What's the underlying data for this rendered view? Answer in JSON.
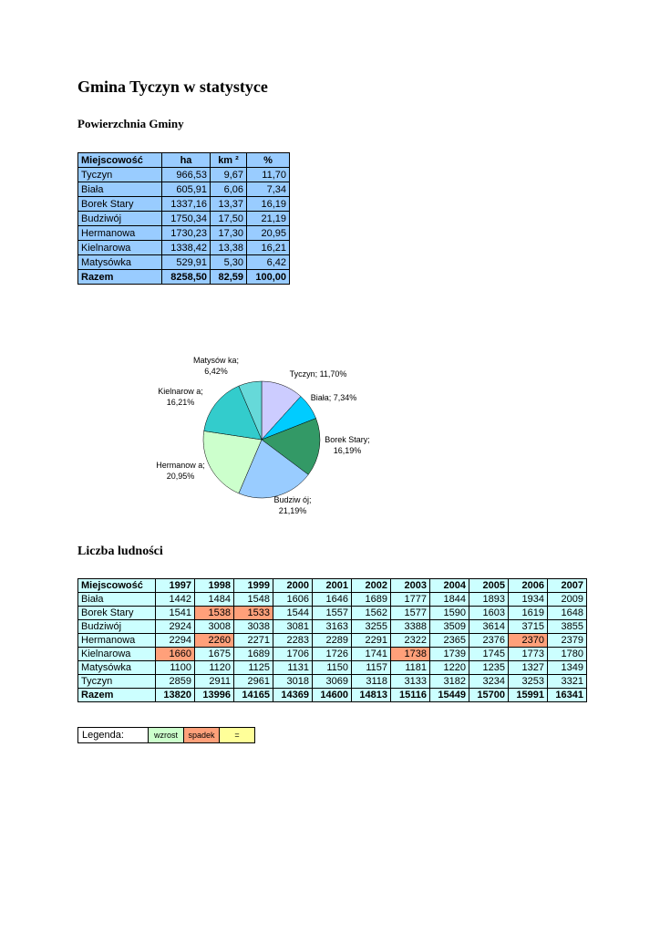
{
  "page": {
    "title": "Gmina Tyczyn w statystyce",
    "section1_heading": "Powierzchnia Gminy",
    "section2_heading": "Liczba ludności"
  },
  "colors": {
    "area_table_fill": "#99CCFF",
    "population_table_fill": "#CCFFFF",
    "decrease_fill": "#FFA07A"
  },
  "area_table": {
    "headers": [
      "Miejscowość",
      "ha",
      "km ²",
      "%"
    ],
    "rows": [
      {
        "name": "Tyczyn",
        "ha": "966,53",
        "km2": "9,67",
        "pct": "11,70"
      },
      {
        "name": "Biała",
        "ha": "605,91",
        "km2": "6,06",
        "pct": "7,34"
      },
      {
        "name": "Borek Stary",
        "ha": "1337,16",
        "km2": "13,37",
        "pct": "16,19"
      },
      {
        "name": "Budziwój",
        "ha": "1750,34",
        "km2": "17,50",
        "pct": "21,19"
      },
      {
        "name": "Hermanowa",
        "ha": "1730,23",
        "km2": "17,30",
        "pct": "20,95"
      },
      {
        "name": "Kielnarowa",
        "ha": "1338,42",
        "km2": "13,38",
        "pct": "16,21"
      },
      {
        "name": "Matysówka",
        "ha": "529,91",
        "km2": "5,30",
        "pct": "6,42"
      },
      {
        "name": "Razem",
        "ha": "8258,50",
        "km2": "82,59",
        "pct": "100,00",
        "bold": true
      }
    ]
  },
  "chart_data": {
    "type": "pie",
    "title": "",
    "legend_position": "none",
    "categories": [
      "Tyczyn",
      "Biała",
      "Borek Stary",
      "Budziwój",
      "Hermanowa",
      "Kielnarowa",
      "Matysówka"
    ],
    "values": [
      11.7,
      7.34,
      16.19,
      21.19,
      20.95,
      16.21,
      6.42
    ],
    "colors": [
      "#CCCCFF",
      "#00CCFF",
      "#339966",
      "#99CCFF",
      "#CCFFCC",
      "#33CCCC",
      "#66D9D9"
    ],
    "slice_keys": [
      "tyczyn",
      "biala",
      "borek",
      "budziwoj",
      "hermanowa",
      "kielnarowa",
      "matysowka"
    ],
    "labels": {
      "tyczyn": [
        "Tyczyn; 11,70%"
      ],
      "biala": [
        "Biała; 7,34%"
      ],
      "borek": [
        "Borek Stary;",
        "16,19%"
      ],
      "budziwoj": [
        "Budziw ój;",
        "21,19%"
      ],
      "hermanowa": [
        "Hermanow a;",
        "20,95%"
      ],
      "kielnarowa": [
        "Kielnarow a;",
        "16,21%"
      ],
      "matysowka": [
        "Matysów ka;",
        "6,42%"
      ]
    }
  },
  "population_table": {
    "header_first": "Miejscowość",
    "years": [
      "1997",
      "1998",
      "1999",
      "2000",
      "2001",
      "2002",
      "2003",
      "2004",
      "2005",
      "2006",
      "2007"
    ],
    "rows": [
      {
        "name": "Biała",
        "values": [
          1442,
          1484,
          1548,
          1606,
          1646,
          1689,
          1777,
          1844,
          1893,
          1934,
          2009
        ]
      },
      {
        "name": "Borek Stary",
        "values": [
          1541,
          1538,
          1533,
          1544,
          1557,
          1562,
          1577,
          1590,
          1603,
          1619,
          1648
        ],
        "decrease_cols": [
          1,
          2
        ]
      },
      {
        "name": "Budziwój",
        "values": [
          2924,
          3008,
          3038,
          3081,
          3163,
          3255,
          3388,
          3509,
          3614,
          3715,
          3855
        ]
      },
      {
        "name": "Hermanowa",
        "values": [
          2294,
          2260,
          2271,
          2283,
          2289,
          2291,
          2322,
          2365,
          2376,
          2370,
          2379
        ],
        "decrease_cols": [
          1,
          9
        ]
      },
      {
        "name": "Kielnarowa",
        "values": [
          1660,
          1675,
          1689,
          1706,
          1726,
          1741,
          1738,
          1739,
          1745,
          1773,
          1780
        ],
        "decrease_cols": [
          0,
          6
        ]
      },
      {
        "name": "Matysówka",
        "values": [
          1100,
          1120,
          1125,
          1131,
          1150,
          1157,
          1181,
          1220,
          1235,
          1327,
          1349
        ]
      },
      {
        "name": "Tyczyn",
        "values": [
          2859,
          2911,
          2961,
          3018,
          3069,
          3118,
          3133,
          3182,
          3234,
          3253,
          3321
        ]
      },
      {
        "name": "Razem",
        "values": [
          13820,
          13996,
          14165,
          14369,
          14600,
          14813,
          15116,
          15449,
          15700,
          15991,
          16341
        ],
        "bold": true
      }
    ]
  },
  "legend": {
    "label": "Legenda:",
    "items": [
      {
        "label": "wzrost",
        "color": "#CCFFCC"
      },
      {
        "label": "spadek",
        "color": "#FFA07A"
      },
      {
        "label": "=",
        "color": "#FFFF99"
      }
    ]
  }
}
